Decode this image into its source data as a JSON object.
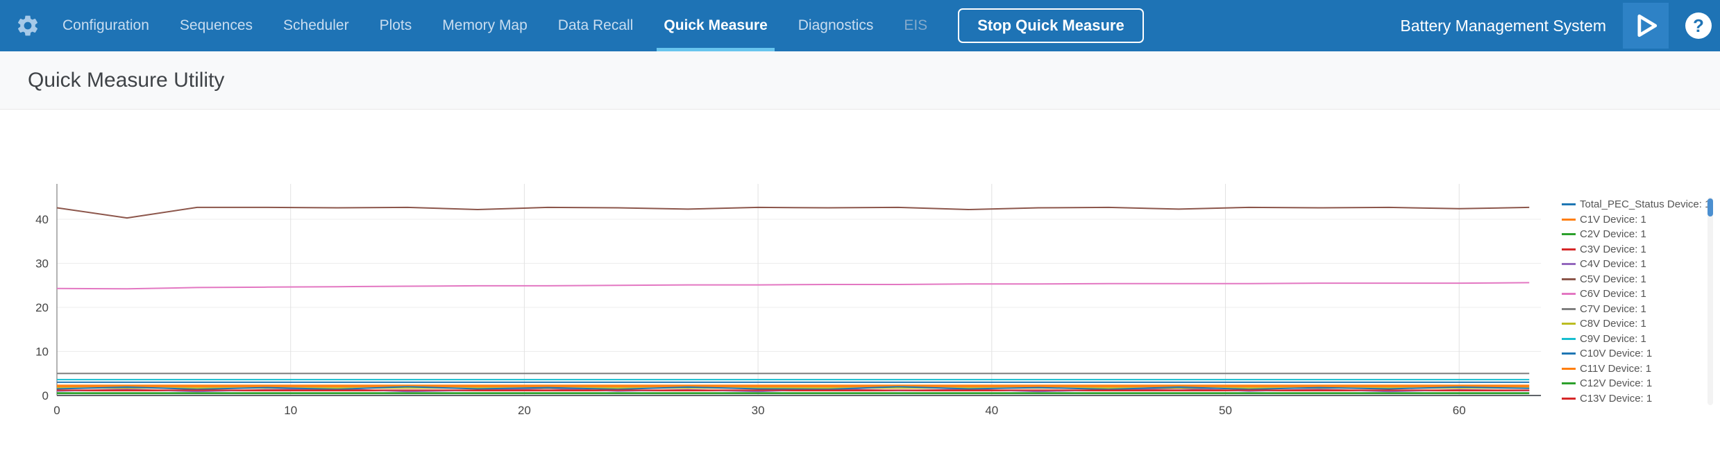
{
  "topbar": {
    "brand": "Battery Management System",
    "nav": [
      {
        "label": "Configuration",
        "active": false,
        "disabled": false
      },
      {
        "label": "Sequences",
        "active": false,
        "disabled": false
      },
      {
        "label": "Scheduler",
        "active": false,
        "disabled": false
      },
      {
        "label": "Plots",
        "active": false,
        "disabled": false
      },
      {
        "label": "Memory Map",
        "active": false,
        "disabled": false
      },
      {
        "label": "Data Recall",
        "active": false,
        "disabled": false
      },
      {
        "label": "Quick Measure",
        "active": true,
        "disabled": false
      },
      {
        "label": "Diagnostics",
        "active": false,
        "disabled": false
      },
      {
        "label": "EIS",
        "active": false,
        "disabled": true
      }
    ],
    "stop_button": "Stop Quick Measure",
    "icons": {
      "gear": "gear-icon",
      "play": "play-icon",
      "help_glyph": "?"
    }
  },
  "header": {
    "title": "Quick Measure Utility"
  },
  "chart_data": {
    "type": "line",
    "title": "",
    "xlabel": "",
    "ylabel": "",
    "xlim": [
      0,
      63.5
    ],
    "ylim": [
      0,
      48
    ],
    "xticks": [
      0,
      10,
      20,
      30,
      40,
      50,
      60
    ],
    "yticks": [
      0,
      10,
      20,
      30,
      40
    ],
    "grid": true,
    "legend_position": "right",
    "x": [
      0,
      3,
      6,
      9,
      12,
      15,
      18,
      21,
      24,
      27,
      30,
      33,
      36,
      39,
      42,
      45,
      48,
      51,
      54,
      57,
      60,
      63
    ],
    "series": [
      {
        "name": "Total_PEC_Status Device: 1",
        "color": "#1f77b4",
        "values": [
          3,
          3,
          3,
          3,
          3,
          3,
          3,
          3,
          3,
          3,
          3,
          3,
          3,
          3,
          3,
          3,
          3,
          3,
          3,
          3,
          3,
          3
        ]
      },
      {
        "name": "C1V Device: 1",
        "color": "#ff7f0e",
        "values": [
          2,
          2,
          2,
          2,
          2,
          2,
          2,
          2,
          2,
          2,
          2,
          2,
          2,
          2,
          2,
          2,
          2,
          2,
          2,
          2,
          2,
          2
        ]
      },
      {
        "name": "C2V Device: 1",
        "color": "#2ca02c",
        "values": [
          0.6,
          0.6,
          0.6,
          0.6,
          0.6,
          0.6,
          0.6,
          0.6,
          0.6,
          0.6,
          0.6,
          0.6,
          0.6,
          0.6,
          0.6,
          0.6,
          0.6,
          0.6,
          0.6,
          0.6,
          0.6,
          0.6
        ]
      },
      {
        "name": "C3V Device: 1",
        "color": "#d62728",
        "values": [
          1.1,
          1.1,
          1.1,
          1.1,
          1.1,
          1.1,
          1.1,
          1.1,
          1.1,
          1.1,
          1.1,
          1.1,
          1.1,
          1.1,
          1.1,
          1.1,
          1.1,
          1.1,
          1.1,
          1.1,
          1.1,
          1.1
        ]
      },
      {
        "name": "C4V Device: 1",
        "color": "#9467bd",
        "values": [
          1.0,
          1.4,
          0.9,
          1.3,
          1.5,
          0.9,
          1.2,
          1.6,
          1.0,
          1.3,
          0.9,
          1.5,
          1.1,
          1.4,
          0.9,
          1.3,
          1.6,
          1.0,
          1.4,
          0.9,
          1.3,
          1.1
        ]
      },
      {
        "name": "C5V Device: 1",
        "color": "#8c564b",
        "values": [
          42.6,
          40.3,
          42.7,
          42.7,
          42.6,
          42.7,
          42.2,
          42.7,
          42.6,
          42.3,
          42.7,
          42.6,
          42.7,
          42.2,
          42.6,
          42.7,
          42.3,
          42.7,
          42.6,
          42.7,
          42.4,
          42.7
        ]
      },
      {
        "name": "C6V Device: 1",
        "color": "#e377c2",
        "values": [
          24.3,
          24.2,
          24.5,
          24.6,
          24.7,
          24.8,
          24.9,
          24.9,
          25.0,
          25.1,
          25.1,
          25.2,
          25.2,
          25.3,
          25.3,
          25.4,
          25.4,
          25.4,
          25.5,
          25.5,
          25.5,
          25.6
        ]
      },
      {
        "name": "C7V Device: 1",
        "color": "#7f7f7f",
        "values": [
          5,
          5,
          5,
          5,
          5,
          5,
          5,
          5,
          5,
          5,
          5,
          5,
          5,
          5,
          5,
          5,
          5,
          5,
          5,
          5,
          5,
          5
        ]
      },
      {
        "name": "C8V Device: 1",
        "color": "#bcbd22",
        "values": [
          1.7,
          1.7,
          1.7,
          1.7,
          1.7,
          1.7,
          1.7,
          1.7,
          1.7,
          1.7,
          1.7,
          1.7,
          1.7,
          1.7,
          1.7,
          1.7,
          1.7,
          1.7,
          1.7,
          1.7,
          1.7,
          1.7
        ]
      },
      {
        "name": "C9V Device: 1",
        "color": "#17becf",
        "values": [
          3.6,
          3.6,
          3.6,
          3.6,
          3.6,
          3.6,
          3.6,
          3.6,
          3.6,
          3.6,
          3.6,
          3.6,
          3.6,
          3.6,
          3.6,
          3.6,
          3.6,
          3.6,
          3.6,
          3.6,
          3.6,
          3.6
        ]
      },
      {
        "name": "C10V Device: 1",
        "color": "#1f77b4",
        "values": [
          1.5,
          1.9,
          1.4,
          1.8,
          1.4,
          2.0,
          1.5,
          1.8,
          1.4,
          1.9,
          1.5,
          1.4,
          2.0,
          1.5,
          1.8,
          1.4,
          1.9,
          1.4,
          1.8,
          1.5,
          1.9,
          1.6
        ]
      },
      {
        "name": "C11V Device: 1",
        "color": "#ff7f0e",
        "values": [
          2.3,
          2.3,
          2.3,
          2.3,
          2.3,
          2.3,
          2.3,
          2.3,
          2.3,
          2.3,
          2.3,
          2.3,
          2.3,
          2.3,
          2.3,
          2.3,
          2.3,
          2.3,
          2.3,
          2.3,
          2.3,
          2.3
        ]
      },
      {
        "name": "C12V Device: 1",
        "color": "#2ca02c",
        "values": [
          0.45,
          0.45,
          0.45,
          0.45,
          0.45,
          0.45,
          0.45,
          0.45,
          0.45,
          0.45,
          0.45,
          0.45,
          0.45,
          0.45,
          0.45,
          0.45,
          0.45,
          0.45,
          0.45,
          0.45,
          0.45,
          0.45
        ]
      },
      {
        "name": "C13V Device: 1",
        "color": "#d62728",
        "values": [
          1.2,
          1.2,
          1.2,
          1.2,
          1.2,
          1.2,
          1.2,
          1.2,
          1.2,
          1.2,
          1.2,
          1.2,
          1.2,
          1.2,
          1.2,
          1.2,
          1.2,
          1.2,
          1.2,
          1.2,
          1.2,
          1.2
        ]
      }
    ]
  }
}
